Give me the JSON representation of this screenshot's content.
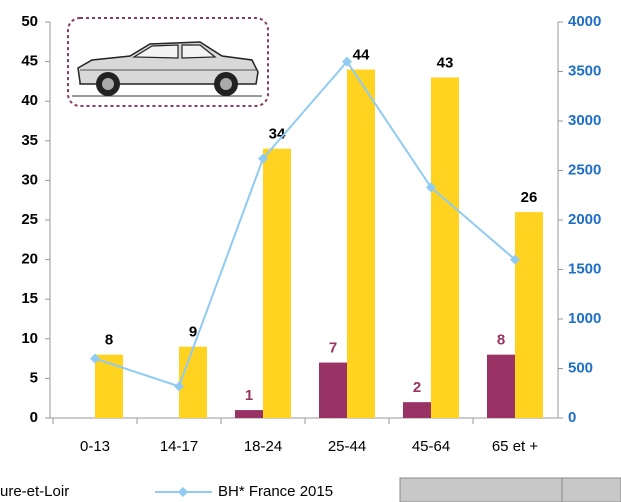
{
  "chart_data": {
    "type": "bar",
    "categories": [
      "0-13",
      "14-17",
      "18-24",
      "25-44",
      "45-64",
      "65 et +"
    ],
    "series": [
      {
        "name": "ure-et-Loir",
        "color": "#993366",
        "values": [
          null,
          null,
          1,
          7,
          2,
          8
        ]
      },
      {
        "color": "#ffd320",
        "values": [
          8,
          9,
          34,
          44,
          43,
          26
        ]
      },
      {
        "name": "BH* France 2015",
        "type": "line",
        "axis": "y2",
        "color": "#8fcbf2",
        "values": [
          600,
          320,
          2620,
          3600,
          2330,
          1600
        ]
      }
    ],
    "ylim": [
      0,
      50
    ],
    "yticks": [
      0,
      5,
      10,
      15,
      20,
      25,
      30,
      35,
      40,
      45,
      50
    ],
    "y2lim": [
      0,
      4000
    ],
    "y2ticks": [
      0,
      500,
      1000,
      1500,
      2000,
      2500,
      3000,
      3500,
      4000
    ],
    "grid": false
  }
}
